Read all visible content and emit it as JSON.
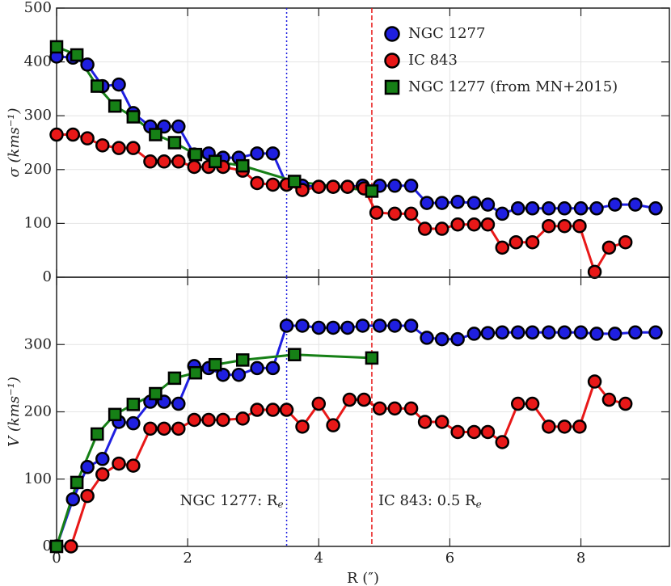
{
  "chart_data": [
    {
      "type": "line",
      "ylabel": "σ (kms⁻¹)",
      "xlim": [
        0,
        9.35
      ],
      "xticks": [
        0,
        2,
        4,
        6,
        8
      ],
      "ylim": [
        0,
        500
      ],
      "yticks": [
        0,
        100,
        200,
        300,
        400,
        500
      ],
      "grid": true,
      "legend": "upper right",
      "series": [
        {
          "name": "NGC 1277",
          "color": "#1f1fe0",
          "marker": "circle",
          "x": [
            0,
            0.25,
            0.47,
            0.7,
            0.95,
            1.17,
            1.43,
            1.64,
            1.86,
            2.1,
            2.32,
            2.54,
            2.78,
            3.06,
            3.3,
            3.51,
            3.75,
            4.0,
            4.22,
            4.44,
            4.67,
            4.93,
            5.16,
            5.41,
            5.65,
            5.88,
            6.12,
            6.37,
            6.58,
            6.8,
            7.04,
            7.26,
            7.51,
            7.75,
            8.0,
            8.24,
            8.52,
            8.83,
            9.14
          ],
          "values": [
            410,
            408,
            395,
            355,
            358,
            305,
            280,
            280,
            280,
            228,
            230,
            222,
            222,
            230,
            230,
            172,
            170,
            168,
            168,
            168,
            170,
            170,
            170,
            170,
            138,
            138,
            140,
            138,
            135,
            118,
            128,
            128,
            128,
            128,
            128,
            128,
            135,
            135,
            128
          ]
        },
        {
          "name": "IC 843",
          "color": "#e81818",
          "marker": "circle",
          "x": [
            0,
            0.25,
            0.47,
            0.7,
            0.95,
            1.17,
            1.43,
            1.64,
            1.86,
            2.1,
            2.32,
            2.54,
            2.84,
            3.06,
            3.3,
            3.51,
            3.75,
            4.0,
            4.22,
            4.44,
            4.69,
            4.88,
            5.16,
            5.41,
            5.62,
            5.88,
            6.12,
            6.37,
            6.58,
            6.8,
            7.01,
            7.26,
            7.51,
            7.75,
            7.98,
            8.21,
            8.43,
            8.68
          ],
          "values": [
            265,
            265,
            258,
            245,
            240,
            240,
            215,
            215,
            215,
            205,
            205,
            205,
            198,
            175,
            172,
            172,
            162,
            168,
            168,
            168,
            165,
            120,
            118,
            118,
            90,
            90,
            98,
            98,
            98,
            55,
            65,
            65,
            95,
            95,
            95,
            10,
            55,
            65
          ]
        },
        {
          "name": "NGC 1277 (from MN+2015)",
          "color": "#168016",
          "marker": "square",
          "x": [
            0,
            0.31,
            0.62,
            0.89,
            1.17,
            1.51,
            1.8,
            2.12,
            2.42,
            2.84,
            3.63,
            4.81
          ],
          "values": [
            428,
            413,
            355,
            318,
            298,
            265,
            250,
            228,
            215,
            207,
            178,
            160
          ]
        }
      ]
    },
    {
      "type": "line",
      "ylabel": "V (kms⁻¹)",
      "xlabel": "R (″)",
      "xlim": [
        0,
        9.35
      ],
      "xticks": [
        0,
        2,
        4,
        6,
        8
      ],
      "ylim": [
        0,
        400
      ],
      "yticks": [
        0,
        100,
        200,
        300
      ],
      "grid": true,
      "vlines": [
        {
          "x": 3.51,
          "color": "#1f1fe0",
          "style": "dotted",
          "label": "NGC 1277: R",
          "sub": "e"
        },
        {
          "x": 4.81,
          "color": "#e81818",
          "style": "dashed",
          "label": "IC 843: 0.5 R",
          "sub": "e"
        }
      ],
      "series": [
        {
          "name": "NGC 1277",
          "color": "#1f1fe0",
          "marker": "circle",
          "x": [
            0,
            0.25,
            0.47,
            0.7,
            0.95,
            1.17,
            1.43,
            1.64,
            1.86,
            2.1,
            2.32,
            2.54,
            2.78,
            3.06,
            3.3,
            3.51,
            3.75,
            4.0,
            4.22,
            4.44,
            4.67,
            4.93,
            5.16,
            5.41,
            5.65,
            5.88,
            6.12,
            6.37,
            6.58,
            6.8,
            7.04,
            7.26,
            7.51,
            7.75,
            8.0,
            8.24,
            8.52,
            8.83,
            9.14
          ],
          "values": [
            0,
            70,
            118,
            130,
            185,
            183,
            215,
            215,
            212,
            268,
            265,
            255,
            255,
            265,
            265,
            328,
            328,
            325,
            325,
            325,
            328,
            328,
            328,
            328,
            310,
            308,
            308,
            316,
            317,
            318,
            318,
            318,
            318,
            318,
            318,
            316,
            316,
            318,
            318
          ]
        },
        {
          "name": "IC 843",
          "color": "#e81818",
          "marker": "circle",
          "x": [
            0.22,
            0.47,
            0.7,
            0.95,
            1.17,
            1.43,
            1.64,
            1.86,
            2.1,
            2.32,
            2.54,
            2.84,
            3.06,
            3.3,
            3.51,
            3.75,
            4.0,
            4.22,
            4.47,
            4.69,
            4.93,
            5.16,
            5.41,
            5.62,
            5.88,
            6.12,
            6.37,
            6.58,
            6.8,
            7.04,
            7.26,
            7.51,
            7.75,
            7.98,
            8.21,
            8.43,
            8.68
          ],
          "values": [
            0,
            75,
            107,
            123,
            120,
            175,
            175,
            175,
            188,
            188,
            188,
            190,
            203,
            203,
            203,
            178,
            212,
            180,
            218,
            218,
            205,
            205,
            205,
            185,
            185,
            170,
            170,
            170,
            155,
            212,
            212,
            178,
            178,
            178,
            245,
            218,
            212
          ]
        },
        {
          "name": "NGC 1277 (from MN+2015)",
          "color": "#168016",
          "marker": "square",
          "x": [
            0,
            0.31,
            0.62,
            0.89,
            1.17,
            1.51,
            1.8,
            2.12,
            2.42,
            2.84,
            3.63,
            4.81
          ],
          "values": [
            0,
            95,
            167,
            196,
            211,
            227,
            250,
            258,
            270,
            277,
            285,
            280
          ]
        }
      ]
    }
  ]
}
